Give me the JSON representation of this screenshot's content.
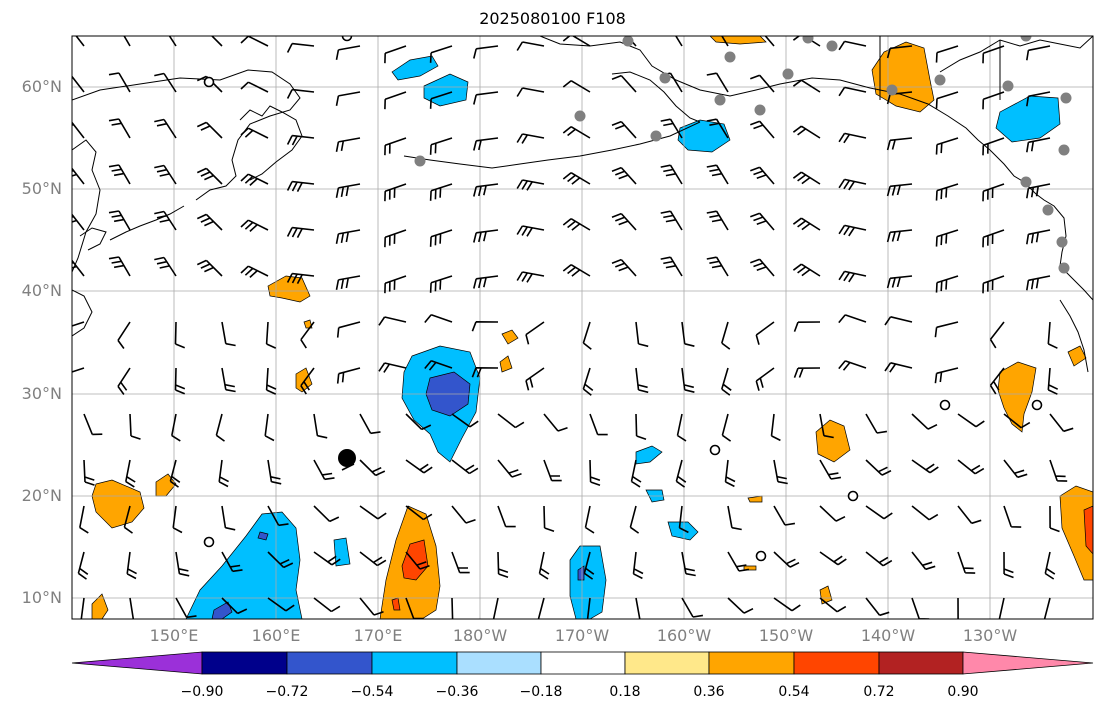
{
  "title": "2025080100 F108",
  "lat_labels": [
    "60°N",
    "50°N",
    "40°N",
    "30°N",
    "20°N",
    "10°N"
  ],
  "lon_labels": [
    "150°E",
    "160°E",
    "170°E",
    "180°W",
    "170°W",
    "160°W",
    "150°W",
    "140°W",
    "130°W"
  ],
  "colorbar": {
    "tick_labels": [
      "−0.90",
      "−0.72",
      "−0.54",
      "−0.36",
      "−0.18",
      "0.18",
      "0.36",
      "0.54",
      "0.72",
      "0.90"
    ],
    "colors": [
      "#9b30d9",
      "#00008b",
      "#3355cc",
      "#00bfff",
      "#aadfff",
      "#ffffff",
      "#ffe88a",
      "#ffa500",
      "#ff4500",
      "#b22222",
      "#ff88aa"
    ]
  },
  "map": {
    "lat_range": [
      8,
      65
    ],
    "lon_range_east": [
      140,
      240
    ],
    "contour_colors": {
      "pos1": "#ffa500",
      "pos2": "#ff4500",
      "neg1": "#00bfff",
      "neg2": "#3355cc"
    },
    "land_outline": "#000000",
    "station_marker_color": "#808080",
    "storm_marker_color": "#000000"
  }
}
